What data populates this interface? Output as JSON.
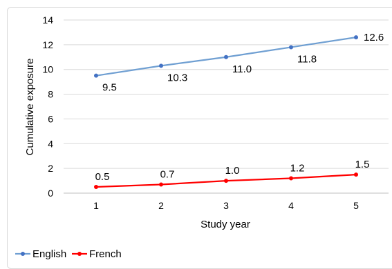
{
  "chart_data": {
    "type": "line",
    "title": "",
    "xlabel": "Study year",
    "ylabel": "Cumulative exposure",
    "x": [
      1,
      2,
      3,
      4,
      5
    ],
    "ylim": [
      0,
      14
    ],
    "yticks": [
      0,
      2,
      4,
      6,
      8,
      10,
      12,
      14
    ],
    "grid": "horizontal",
    "legend_position": "bottom-left",
    "series": [
      {
        "name": "English",
        "color": "#6f9fd2",
        "marker_color": "#4472c4",
        "values": [
          9.5,
          10.3,
          11.0,
          11.8,
          12.6
        ],
        "labels": [
          "9.5",
          "10.3",
          "11.0",
          "11.8",
          "12.6"
        ]
      },
      {
        "name": "French",
        "color": "#ff0000",
        "marker_color": "#ff0000",
        "values": [
          0.5,
          0.7,
          1.0,
          1.2,
          1.5
        ],
        "labels": [
          "0.5",
          "0.7",
          "1.0",
          "1.2",
          "1.5"
        ]
      }
    ]
  }
}
